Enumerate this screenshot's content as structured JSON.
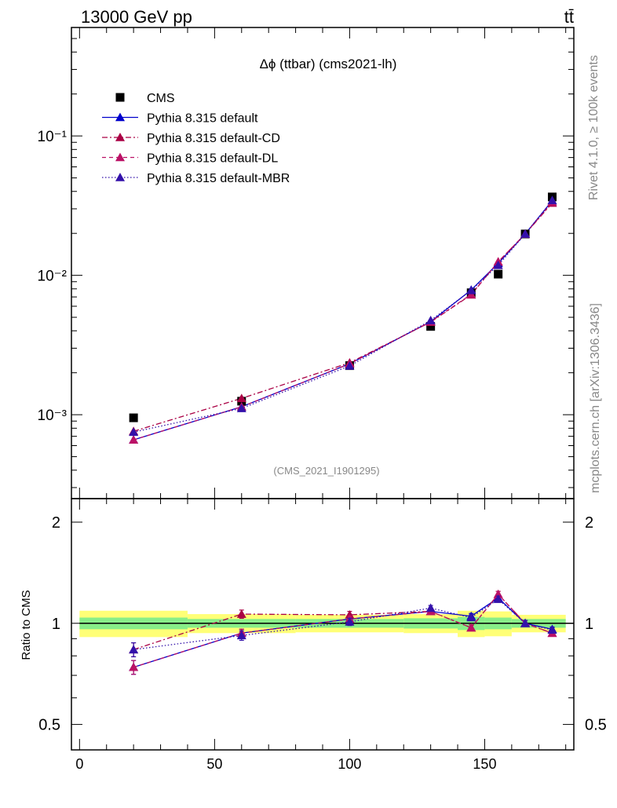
{
  "header": {
    "energy_label": "13000 GeV pp",
    "process_label": "tt̄"
  },
  "side_labels": {
    "rivet": "Rivet 4.1.0, ≥ 100k events",
    "mcplots": "mcplots.cern.ch [arXiv:1306.3436]"
  },
  "chart_data": [
    {
      "type": "scatter",
      "panel": "main",
      "title": "Δϕ (ttbar) (cms2021-lh)",
      "watermark": "(CMS_2021_I1901295)",
      "yscale": "log",
      "xlim": [
        -3,
        183
      ],
      "ylim": [
        0.00025,
        0.6
      ],
      "x": [
        20,
        60,
        100,
        130,
        145,
        155,
        165,
        175
      ],
      "ytick_labels": [
        "10⁻³",
        "10⁻²",
        "10⁻¹"
      ],
      "ytick_values": [
        0.001,
        0.01,
        0.1
      ],
      "legend": {
        "location": "top-left"
      },
      "series": [
        {
          "name": "CMS",
          "style": "data",
          "color": "#000000",
          "values": [
            0.00095,
            0.00125,
            0.00225,
            0.0043,
            0.0075,
            0.0102,
            0.0198,
            0.0365
          ]
        },
        {
          "name": "Pythia 8.315 default",
          "style": "solid",
          "color": "#0000cc",
          "values": [
            0.00066,
            0.00114,
            0.00232,
            0.00465,
            0.00785,
            0.0122,
            0.0198,
            0.0343
          ]
        },
        {
          "name": "Pythia 8.315 default-CD",
          "style": "dashdot",
          "color": "#aa0044",
          "values": [
            0.00076,
            0.00131,
            0.00236,
            0.00462,
            0.00725,
            0.0125,
            0.0198,
            0.033
          ]
        },
        {
          "name": "Pythia 8.315 default-DL",
          "style": "dashed",
          "color": "#bb1166",
          "values": [
            0.00066,
            0.00114,
            0.00232,
            0.00465,
            0.0073,
            0.0125,
            0.0198,
            0.0335
          ]
        },
        {
          "name": "Pythia 8.315 default-MBR",
          "style": "dotted",
          "color": "#3311aa",
          "values": [
            0.00075,
            0.00111,
            0.00224,
            0.00475,
            0.0078,
            0.0118,
            0.0198,
            0.0345
          ]
        }
      ]
    },
    {
      "type": "scatter",
      "panel": "ratio",
      "ylabel": "Ratio to CMS",
      "xlim": [
        -3,
        183
      ],
      "ylim": [
        0.42,
        2.35
      ],
      "x": [
        20,
        60,
        100,
        130,
        145,
        155,
        165,
        175
      ],
      "xtick_labels": [
        "0",
        "50",
        "100",
        "150"
      ],
      "xtick_values": [
        0,
        50,
        100,
        150
      ],
      "ytick_labels": [
        "0.5",
        "1",
        "2"
      ],
      "ytick_values": [
        0.5,
        1,
        2
      ],
      "bands": {
        "edges": [
          0,
          40,
          80,
          120,
          140,
          150,
          160,
          180
        ],
        "yellow_half_width": [
          0.09,
          0.065,
          0.06,
          0.065,
          0.09,
          0.085,
          0.06
        ],
        "green_half_width": [
          0.04,
          0.03,
          0.03,
          0.035,
          0.045,
          0.04,
          0.03
        ]
      },
      "series": [
        {
          "name": "Pythia 8.315 default",
          "style": "solid",
          "color": "#0000cc",
          "values": [
            0.74,
            0.935,
            1.03,
            1.085,
            1.05,
            1.19,
            1.0,
            0.96
          ],
          "errors": [
            0.035,
            0.025,
            0.02,
            0.02,
            0.02,
            0.025,
            0.02,
            0.015
          ]
        },
        {
          "name": "Pythia 8.315 default-CD",
          "style": "dashdot",
          "color": "#aa0044",
          "values": [
            0.835,
            1.065,
            1.06,
            1.085,
            0.97,
            1.22,
            1.0,
            0.935
          ],
          "errors": [
            0.04,
            0.03,
            0.025,
            0.02,
            0.02,
            0.025,
            0.02,
            0.015
          ]
        },
        {
          "name": "Pythia 8.315 default-DL",
          "style": "dashed",
          "color": "#bb1166",
          "values": [
            0.74,
            0.935,
            1.03,
            1.085,
            0.97,
            1.22,
            1.0,
            0.935
          ],
          "errors": [
            0.035,
            0.025,
            0.02,
            0.02,
            0.02,
            0.025,
            0.02,
            0.015
          ]
        },
        {
          "name": "Pythia 8.315 default-MBR",
          "style": "dotted",
          "color": "#3311aa",
          "values": [
            0.835,
            0.92,
            1.01,
            1.11,
            1.04,
            1.18,
            1.0,
            0.955
          ],
          "errors": [
            0.04,
            0.03,
            0.025,
            0.02,
            0.02,
            0.025,
            0.02,
            0.015
          ]
        }
      ]
    }
  ]
}
